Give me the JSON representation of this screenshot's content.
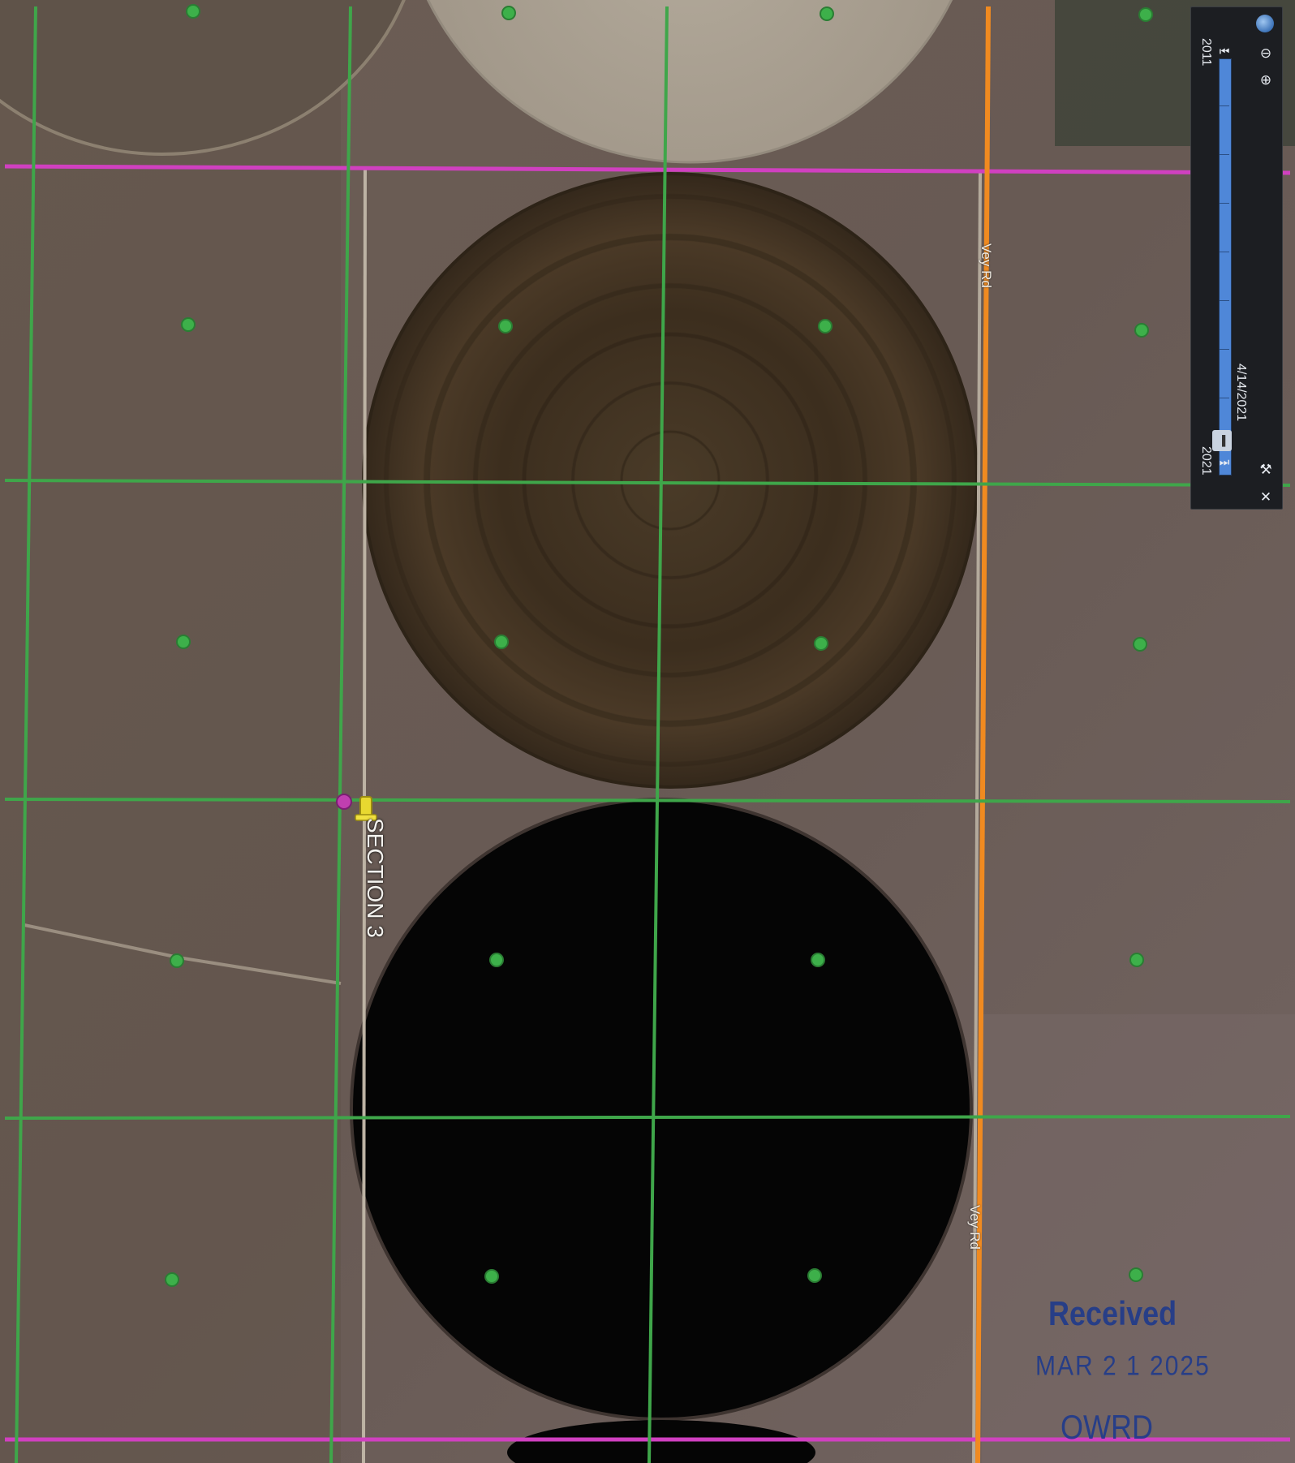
{
  "map": {
    "roads": [
      {
        "name": "Vey Rd"
      },
      {
        "name": "Vey Rd"
      }
    ],
    "section_marker": {
      "label": "SECTION 3",
      "icon": "pushpin-icon"
    },
    "colors": {
      "grid_lines": "#3fa64a",
      "section_lines": "#d040c0",
      "road": "#f08a20",
      "pin": "#e8d830",
      "placemark": "#3db04a"
    }
  },
  "time_slider": {
    "start_year": "2011",
    "end_year": "2021",
    "current_date": "4/14/2021",
    "icons": [
      "globe-icon",
      "zoom-out-icon",
      "zoom-in-icon",
      "step-back-icon",
      "step-forward-icon",
      "wrench-icon",
      "close-icon"
    ]
  },
  "stamp": {
    "line1": "Received",
    "line2": "MAR 2 1 2025",
    "line3": "OWRD"
  }
}
